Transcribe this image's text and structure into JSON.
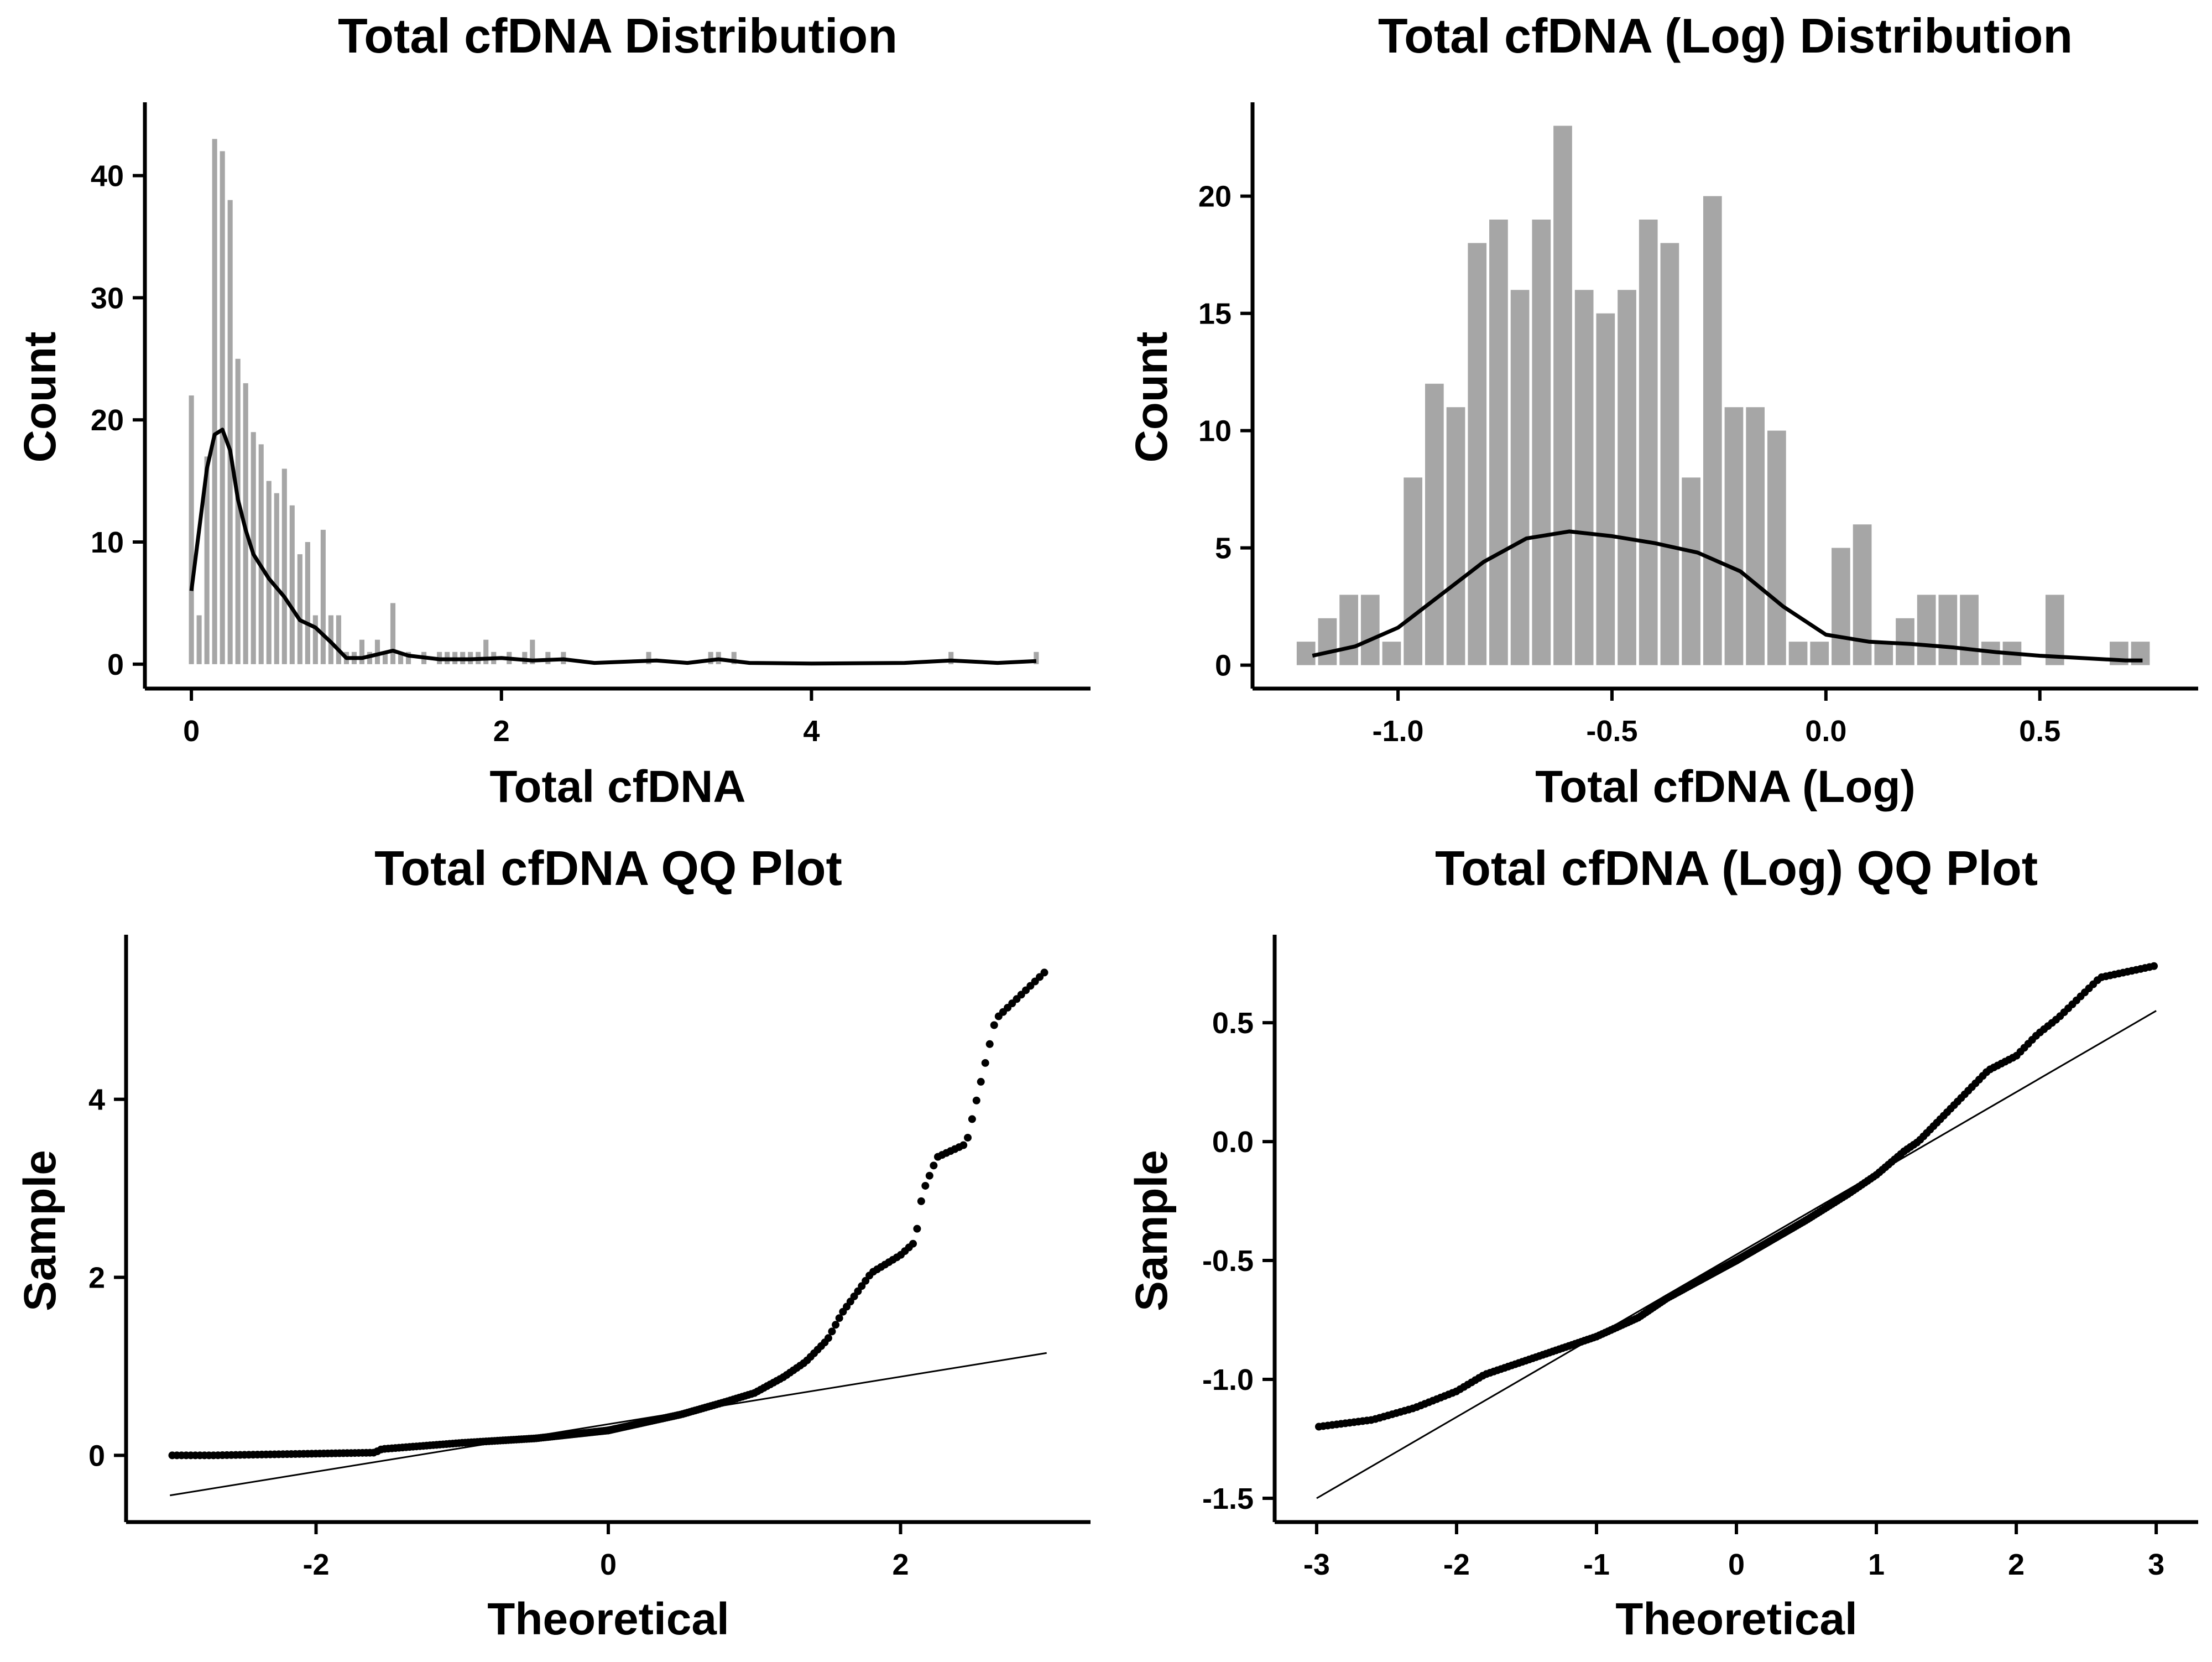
{
  "chart_data": [
    {
      "type": "bar",
      "title": "Total cfDNA Distribution",
      "xlabel": "Total cfDNA",
      "ylabel": "Count",
      "xlim": [
        -0.3,
        5.8
      ],
      "ylim": [
        -2,
        46
      ],
      "xticks": [
        0,
        2,
        4
      ],
      "yticks": [
        0,
        10,
        20,
        30,
        40
      ],
      "bar_color": "#a6a6a6",
      "bin_width": 0.05,
      "bins": [
        [
          0.0,
          22
        ],
        [
          0.05,
          4
        ],
        [
          0.1,
          17
        ],
        [
          0.15,
          43
        ],
        [
          0.2,
          42
        ],
        [
          0.25,
          38
        ],
        [
          0.3,
          25
        ],
        [
          0.35,
          23
        ],
        [
          0.4,
          19
        ],
        [
          0.45,
          18
        ],
        [
          0.5,
          15
        ],
        [
          0.55,
          14
        ],
        [
          0.6,
          16
        ],
        [
          0.65,
          13
        ],
        [
          0.7,
          9
        ],
        [
          0.75,
          10
        ],
        [
          0.8,
          4
        ],
        [
          0.85,
          11
        ],
        [
          0.9,
          4
        ],
        [
          0.95,
          4
        ],
        [
          1.0,
          1
        ],
        [
          1.05,
          1
        ],
        [
          1.1,
          2
        ],
        [
          1.15,
          1
        ],
        [
          1.2,
          2
        ],
        [
          1.25,
          1
        ],
        [
          1.3,
          5
        ],
        [
          1.35,
          1
        ],
        [
          1.4,
          1
        ],
        [
          1.5,
          1
        ],
        [
          1.6,
          1
        ],
        [
          1.65,
          1
        ],
        [
          1.7,
          1
        ],
        [
          1.75,
          1
        ],
        [
          1.8,
          1
        ],
        [
          1.85,
          1
        ],
        [
          1.9,
          2
        ],
        [
          1.95,
          1
        ],
        [
          2.05,
          1
        ],
        [
          2.15,
          1
        ],
        [
          2.2,
          2
        ],
        [
          2.3,
          1
        ],
        [
          2.4,
          1
        ],
        [
          2.95,
          1
        ],
        [
          3.35,
          1
        ],
        [
          3.4,
          1
        ],
        [
          3.5,
          1
        ],
        [
          4.9,
          1
        ],
        [
          5.45,
          1
        ]
      ],
      "kde": [
        [
          0.0,
          6
        ],
        [
          0.05,
          11
        ],
        [
          0.1,
          16
        ],
        [
          0.15,
          18.8
        ],
        [
          0.2,
          19.2
        ],
        [
          0.25,
          17.5
        ],
        [
          0.3,
          13.5
        ],
        [
          0.35,
          11
        ],
        [
          0.4,
          9
        ],
        [
          0.5,
          7
        ],
        [
          0.6,
          5.5
        ],
        [
          0.7,
          3.6
        ],
        [
          0.8,
          3
        ],
        [
          0.9,
          1.8
        ],
        [
          1.0,
          0.5
        ],
        [
          1.1,
          0.5
        ],
        [
          1.2,
          0.8
        ],
        [
          1.3,
          1.1
        ],
        [
          1.4,
          0.7
        ],
        [
          1.6,
          0.4
        ],
        [
          1.8,
          0.4
        ],
        [
          2.0,
          0.5
        ],
        [
          2.2,
          0.3
        ],
        [
          2.4,
          0.4
        ],
        [
          2.6,
          0.1
        ],
        [
          3.0,
          0.3
        ],
        [
          3.2,
          0.1
        ],
        [
          3.4,
          0.4
        ],
        [
          3.6,
          0.1
        ],
        [
          4.0,
          0.05
        ],
        [
          4.6,
          0.1
        ],
        [
          4.9,
          0.3
        ],
        [
          5.2,
          0.1
        ],
        [
          5.45,
          0.25
        ]
      ]
    },
    {
      "type": "bar",
      "title": "Total cfDNA (Log) Distribution",
      "xlabel": "Total cfDNA (Log)",
      "ylabel": "Count",
      "xlim": [
        -1.34,
        0.87
      ],
      "ylim": [
        -1,
        24
      ],
      "xticks": [
        -1.0,
        -0.5,
        0.0,
        0.5
      ],
      "xtick_labels": [
        "-1.0",
        "-0.5",
        "0.0",
        "0.5"
      ],
      "yticks": [
        0,
        5,
        10,
        15,
        20
      ],
      "bar_color": "#a6a6a6",
      "bin_width": 0.0495,
      "bins": [
        [
          -1.215,
          1
        ],
        [
          -1.165,
          2
        ],
        [
          -1.115,
          3
        ],
        [
          -1.065,
          3
        ],
        [
          -1.015,
          1
        ],
        [
          -0.965,
          8
        ],
        [
          -0.915,
          12
        ],
        [
          -0.865,
          11
        ],
        [
          -0.815,
          18
        ],
        [
          -0.765,
          19
        ],
        [
          -0.715,
          16
        ],
        [
          -0.665,
          19
        ],
        [
          -0.615,
          23
        ],
        [
          -0.565,
          16
        ],
        [
          -0.515,
          15
        ],
        [
          -0.465,
          16
        ],
        [
          -0.415,
          19
        ],
        [
          -0.365,
          18
        ],
        [
          -0.315,
          8
        ],
        [
          -0.265,
          20
        ],
        [
          -0.215,
          11
        ],
        [
          -0.165,
          11
        ],
        [
          -0.115,
          10
        ],
        [
          -0.065,
          1
        ],
        [
          -0.015,
          1
        ],
        [
          0.035,
          5
        ],
        [
          0.085,
          6
        ],
        [
          0.135,
          1
        ],
        [
          0.185,
          2
        ],
        [
          0.235,
          3
        ],
        [
          0.285,
          3
        ],
        [
          0.335,
          3
        ],
        [
          0.385,
          1
        ],
        [
          0.435,
          1
        ],
        [
          0.485,
          0
        ],
        [
          0.535,
          3
        ],
        [
          0.585,
          0
        ],
        [
          0.635,
          0
        ],
        [
          0.685,
          1
        ],
        [
          0.735,
          1
        ]
      ],
      "kde": [
        [
          -1.2,
          0.4
        ],
        [
          -1.1,
          0.8
        ],
        [
          -1.0,
          1.6
        ],
        [
          -0.9,
          3.0
        ],
        [
          -0.8,
          4.4
        ],
        [
          -0.7,
          5.4
        ],
        [
          -0.6,
          5.7
        ],
        [
          -0.5,
          5.5
        ],
        [
          -0.4,
          5.2
        ],
        [
          -0.3,
          4.8
        ],
        [
          -0.2,
          4.0
        ],
        [
          -0.1,
          2.5
        ],
        [
          0.0,
          1.3
        ],
        [
          0.1,
          1.0
        ],
        [
          0.2,
          0.9
        ],
        [
          0.3,
          0.75
        ],
        [
          0.4,
          0.55
        ],
        [
          0.5,
          0.4
        ],
        [
          0.6,
          0.3
        ],
        [
          0.7,
          0.2
        ],
        [
          0.74,
          0.2
        ]
      ]
    },
    {
      "type": "scatter",
      "title": "Total cfDNA QQ Plot",
      "xlabel": "Theoretical",
      "ylabel": "Sample",
      "xlim": [
        -3.3,
        3.3
      ],
      "ylim": [
        -0.75,
        5.85
      ],
      "xticks": [
        -2,
        0,
        2
      ],
      "yticks": [
        0,
        2,
        4
      ],
      "reference_line": [
        [
          -3.0,
          -0.45
        ],
        [
          3.0,
          1.15
        ]
      ],
      "points_spec": {
        "n": 300,
        "knots": [
          [
            -3.0,
            0.0
          ],
          [
            -2.7,
            0.0
          ],
          [
            -1.6,
            0.03
          ],
          [
            -1.55,
            0.07
          ],
          [
            -1.0,
            0.14
          ],
          [
            -0.5,
            0.19
          ],
          [
            0.0,
            0.28
          ],
          [
            0.5,
            0.46
          ],
          [
            0.8,
            0.6
          ],
          [
            1.0,
            0.7
          ],
          [
            1.2,
            0.88
          ],
          [
            1.35,
            1.05
          ],
          [
            1.5,
            1.3
          ],
          [
            1.6,
            1.6
          ],
          [
            1.8,
            2.05
          ],
          [
            2.0,
            2.25
          ],
          [
            2.1,
            2.4
          ],
          [
            2.15,
            2.95
          ],
          [
            2.25,
            3.35
          ],
          [
            2.45,
            3.5
          ],
          [
            2.65,
            4.9
          ],
          [
            3.0,
            5.45
          ]
        ],
        "marker_size": 7
      }
    },
    {
      "type": "scatter",
      "title": "Total cfDNA (Log) QQ Plot",
      "xlabel": "Theoretical",
      "ylabel": "Sample",
      "xlim": [
        -3.3,
        3.3
      ],
      "ylim": [
        -1.6,
        0.87
      ],
      "xticks": [
        -3,
        -2,
        -1,
        0,
        1,
        2,
        3
      ],
      "yticks": [
        -1.5,
        -1.0,
        -0.5,
        0.0,
        0.5
      ],
      "ytick_labels": [
        "-1.5",
        "-1.0",
        "-0.5",
        "0.0",
        "0.5"
      ],
      "reference_line": [
        [
          -3.0,
          -1.5
        ],
        [
          3.0,
          0.55
        ]
      ],
      "points_spec": {
        "n": 300,
        "knots": [
          [
            -3.0,
            -1.2
          ],
          [
            -2.6,
            -1.17
          ],
          [
            -2.3,
            -1.12
          ],
          [
            -2.0,
            -1.05
          ],
          [
            -1.8,
            -0.98
          ],
          [
            -1.5,
            -0.92
          ],
          [
            -1.0,
            -0.82
          ],
          [
            -0.7,
            -0.74
          ],
          [
            -0.5,
            -0.66
          ],
          [
            0.0,
            -0.5
          ],
          [
            0.5,
            -0.33
          ],
          [
            0.8,
            -0.22
          ],
          [
            1.0,
            -0.14
          ],
          [
            1.2,
            -0.04
          ],
          [
            1.3,
            0.0
          ],
          [
            1.5,
            0.12
          ],
          [
            1.8,
            0.3
          ],
          [
            2.0,
            0.36
          ],
          [
            2.15,
            0.45
          ],
          [
            2.3,
            0.52
          ],
          [
            2.6,
            0.69
          ],
          [
            3.0,
            0.74
          ]
        ],
        "marker_size": 7
      }
    }
  ]
}
